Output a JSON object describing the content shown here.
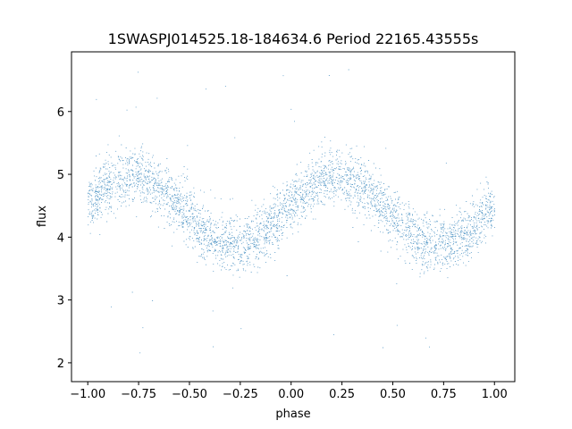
{
  "chart_data": {
    "type": "scatter",
    "title": "1SWASPJ014525.18-184634.6 Period 22165.43555s",
    "xlabel": "phase",
    "ylabel": "flux",
    "xlim": [
      -1.08,
      1.1
    ],
    "ylim": [
      1.7,
      6.95
    ],
    "xticks": [
      -1.0,
      -0.75,
      -0.5,
      -0.25,
      0.0,
      0.25,
      0.5,
      0.75,
      1.0
    ],
    "xtick_labels": [
      "−1.00",
      "−0.75",
      "−0.50",
      "−0.25",
      "0.00",
      "0.25",
      "0.50",
      "0.75",
      "1.00"
    ],
    "yticks": [
      2,
      3,
      4,
      5,
      6
    ],
    "ytick_labels": [
      "2",
      "3",
      "4",
      "5",
      "6"
    ],
    "grid": false,
    "legend": "none",
    "color": "#1f77b4",
    "series": [
      {
        "x_range": [
          -1.0,
          1.0
        ],
        "model": "sinusoid",
        "mean_flux": 4.42,
        "amplitude": 0.55,
        "peak_phases": [
          -0.78,
          0.22
        ],
        "trough_phases": [
          -0.25,
          0.75
        ],
        "scatter_sigma": 0.22,
        "n_points_approx": 16000,
        "outlier_range": [
          1.9,
          6.7
        ]
      }
    ]
  }
}
